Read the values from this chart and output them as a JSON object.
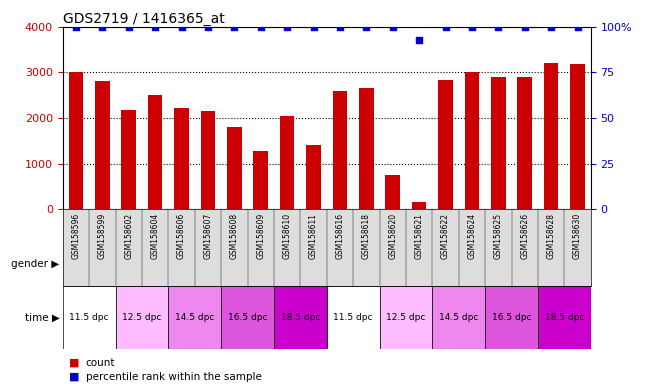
{
  "title": "GDS2719 / 1416365_at",
  "samples": [
    "GSM158596",
    "GSM158599",
    "GSM158602",
    "GSM158604",
    "GSM158606",
    "GSM158607",
    "GSM158608",
    "GSM158609",
    "GSM158610",
    "GSM158611",
    "GSM158616",
    "GSM158618",
    "GSM158620",
    "GSM158621",
    "GSM158622",
    "GSM158624",
    "GSM158625",
    "GSM158626",
    "GSM158628",
    "GSM158630"
  ],
  "counts": [
    3000,
    2820,
    2180,
    2500,
    2220,
    2150,
    1800,
    1280,
    2050,
    1400,
    2600,
    2670,
    760,
    150,
    2830,
    3000,
    2900,
    2900,
    3200,
    3180
  ],
  "percentile_ranks": [
    100,
    100,
    100,
    100,
    100,
    100,
    100,
    100,
    100,
    100,
    100,
    100,
    100,
    93,
    100,
    100,
    100,
    100,
    100,
    100
  ],
  "bar_color": "#cc0000",
  "dot_color": "#0000cc",
  "ylim_left": [
    0,
    4000
  ],
  "ylim_right": [
    0,
    100
  ],
  "yticks_left": [
    0,
    1000,
    2000,
    3000,
    4000
  ],
  "yticks_right": [
    0,
    25,
    50,
    75,
    100
  ],
  "ytick_labels_right": [
    "0",
    "25",
    "50",
    "75",
    "100%"
  ],
  "gender_color_male": "#99ff99",
  "gender_color_female": "#ff88ff",
  "time_labels": [
    "11.5 dpc",
    "12.5 dpc",
    "14.5 dpc",
    "16.5 dpc",
    "18.5 dpc"
  ],
  "time_colors": [
    "#ffffff",
    "#ffbbff",
    "#ee88ee",
    "#dd55dd",
    "#cc00cc"
  ],
  "legend_count_label": "count",
  "legend_percentile_label": "percentile rank within the sample",
  "bg_color": "#ffffff",
  "bar_width": 0.55
}
